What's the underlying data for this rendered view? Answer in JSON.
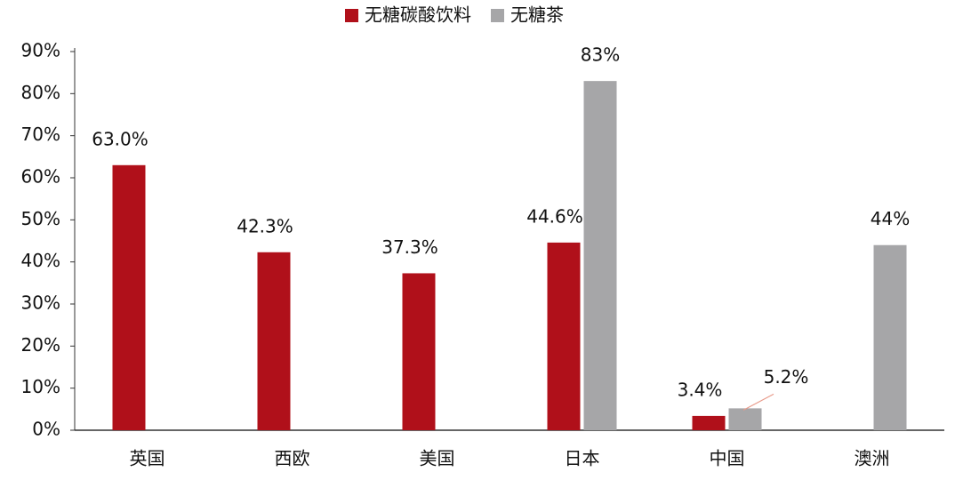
{
  "chart_data": {
    "type": "bar",
    "categories": [
      "英国",
      "西欧",
      "美国",
      "日本",
      "中国",
      "澳洲"
    ],
    "series": [
      {
        "name": "无糖碳酸饮料",
        "color": "#b0101a",
        "values": [
          63.0,
          42.3,
          37.3,
          44.6,
          3.4,
          null
        ],
        "value_labels": [
          "63.0%",
          "42.3%",
          "37.3%",
          "44.6%",
          "3.4%",
          null
        ]
      },
      {
        "name": "无糖茶",
        "color": "#a6a6a8",
        "values": [
          null,
          null,
          null,
          83,
          5.2,
          44
        ],
        "value_labels": [
          null,
          null,
          null,
          "83%",
          "5.2%",
          "44%"
        ]
      }
    ],
    "ylim": [
      0,
      90
    ],
    "yticks": [
      {
        "value": 0,
        "label": "0%"
      },
      {
        "value": 10,
        "label": "10%"
      },
      {
        "value": 20,
        "label": "20%"
      },
      {
        "value": 30,
        "label": "30%"
      },
      {
        "value": 40,
        "label": "40%"
      },
      {
        "value": 50,
        "label": "50%"
      },
      {
        "value": 60,
        "label": "60%"
      },
      {
        "value": 70,
        "label": "70%"
      },
      {
        "value": 80,
        "label": "80%"
      },
      {
        "value": 90,
        "label": "90%"
      }
    ],
    "legend": "top",
    "grid": false
  }
}
